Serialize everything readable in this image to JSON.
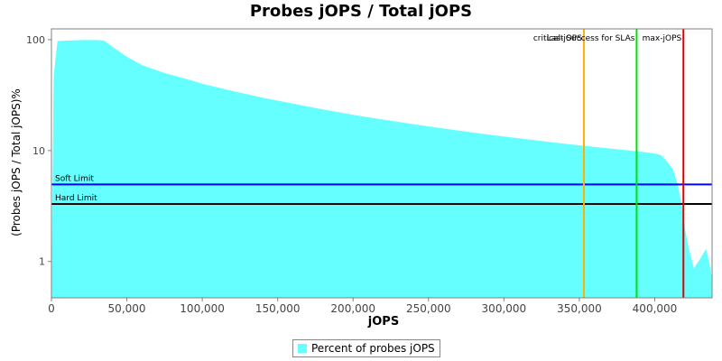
{
  "chart_data": {
    "type": "area",
    "title": "Probes jOPS / Total jOPS",
    "xlabel": "jOPS",
    "ylabel": "(Probes jOPS / Total jOPS)%",
    "yscale": "log",
    "xlim": [
      0,
      438000
    ],
    "ylim": [
      0.47,
      125
    ],
    "x_ticks": [
      0,
      50000,
      100000,
      150000,
      200000,
      250000,
      300000,
      350000,
      400000
    ],
    "x_tick_labels": [
      "0",
      "50,000",
      "100,000",
      "150,000",
      "200,000",
      "250,000",
      "300,000",
      "350,000",
      "400,000"
    ],
    "y_ticks": [
      1,
      10,
      100
    ],
    "y_tick_labels": [
      "1",
      "10",
      "100"
    ],
    "series": [
      {
        "name": "Percent of probes jOPS",
        "color": "#66ffff",
        "x": [
          0,
          1500,
          4000,
          10000,
          20000,
          30000,
          35000,
          40000,
          50000,
          60000,
          75000,
          90000,
          100000,
          120000,
          140000,
          160000,
          180000,
          200000,
          220000,
          240000,
          260000,
          280000,
          300000,
          320000,
          340000,
          360000,
          380000,
          390000,
          400000,
          404000,
          408000,
          412000,
          415000,
          418000,
          420000,
          422000,
          426000,
          430000,
          434000,
          436000,
          438000
        ],
        "y": [
          0.47,
          48,
          97,
          98,
          99,
          99,
          98,
          87,
          70,
          59,
          50,
          44,
          40,
          34.5,
          30,
          26.5,
          23.5,
          21,
          19,
          17.3,
          15.8,
          14.5,
          13.4,
          12.4,
          11.5,
          10.8,
          10.1,
          9.8,
          9.4,
          9.1,
          8.0,
          6.8,
          5.0,
          3.2,
          2.0,
          1.4,
          0.87,
          1.05,
          1.3,
          1.0,
          0.7
        ]
      }
    ],
    "reference_lines": [
      {
        "orientation": "horizontal",
        "label": "Soft Limit",
        "value": 4.95,
        "color": "#0000ff"
      },
      {
        "orientation": "horizontal",
        "label": "Hard Limit",
        "value": 3.3,
        "color": "#000000"
      },
      {
        "orientation": "vertical",
        "label": "critical-jOPS",
        "value": 353000,
        "color": "#ffb000"
      },
      {
        "orientation": "vertical",
        "label": "Last Success for SLAs",
        "value": 388000,
        "color": "#00e000"
      },
      {
        "orientation": "vertical",
        "label": "max-jOPS",
        "value": 419000,
        "color": "#e00000"
      }
    ],
    "grid": false,
    "legend_position": "bottom"
  }
}
